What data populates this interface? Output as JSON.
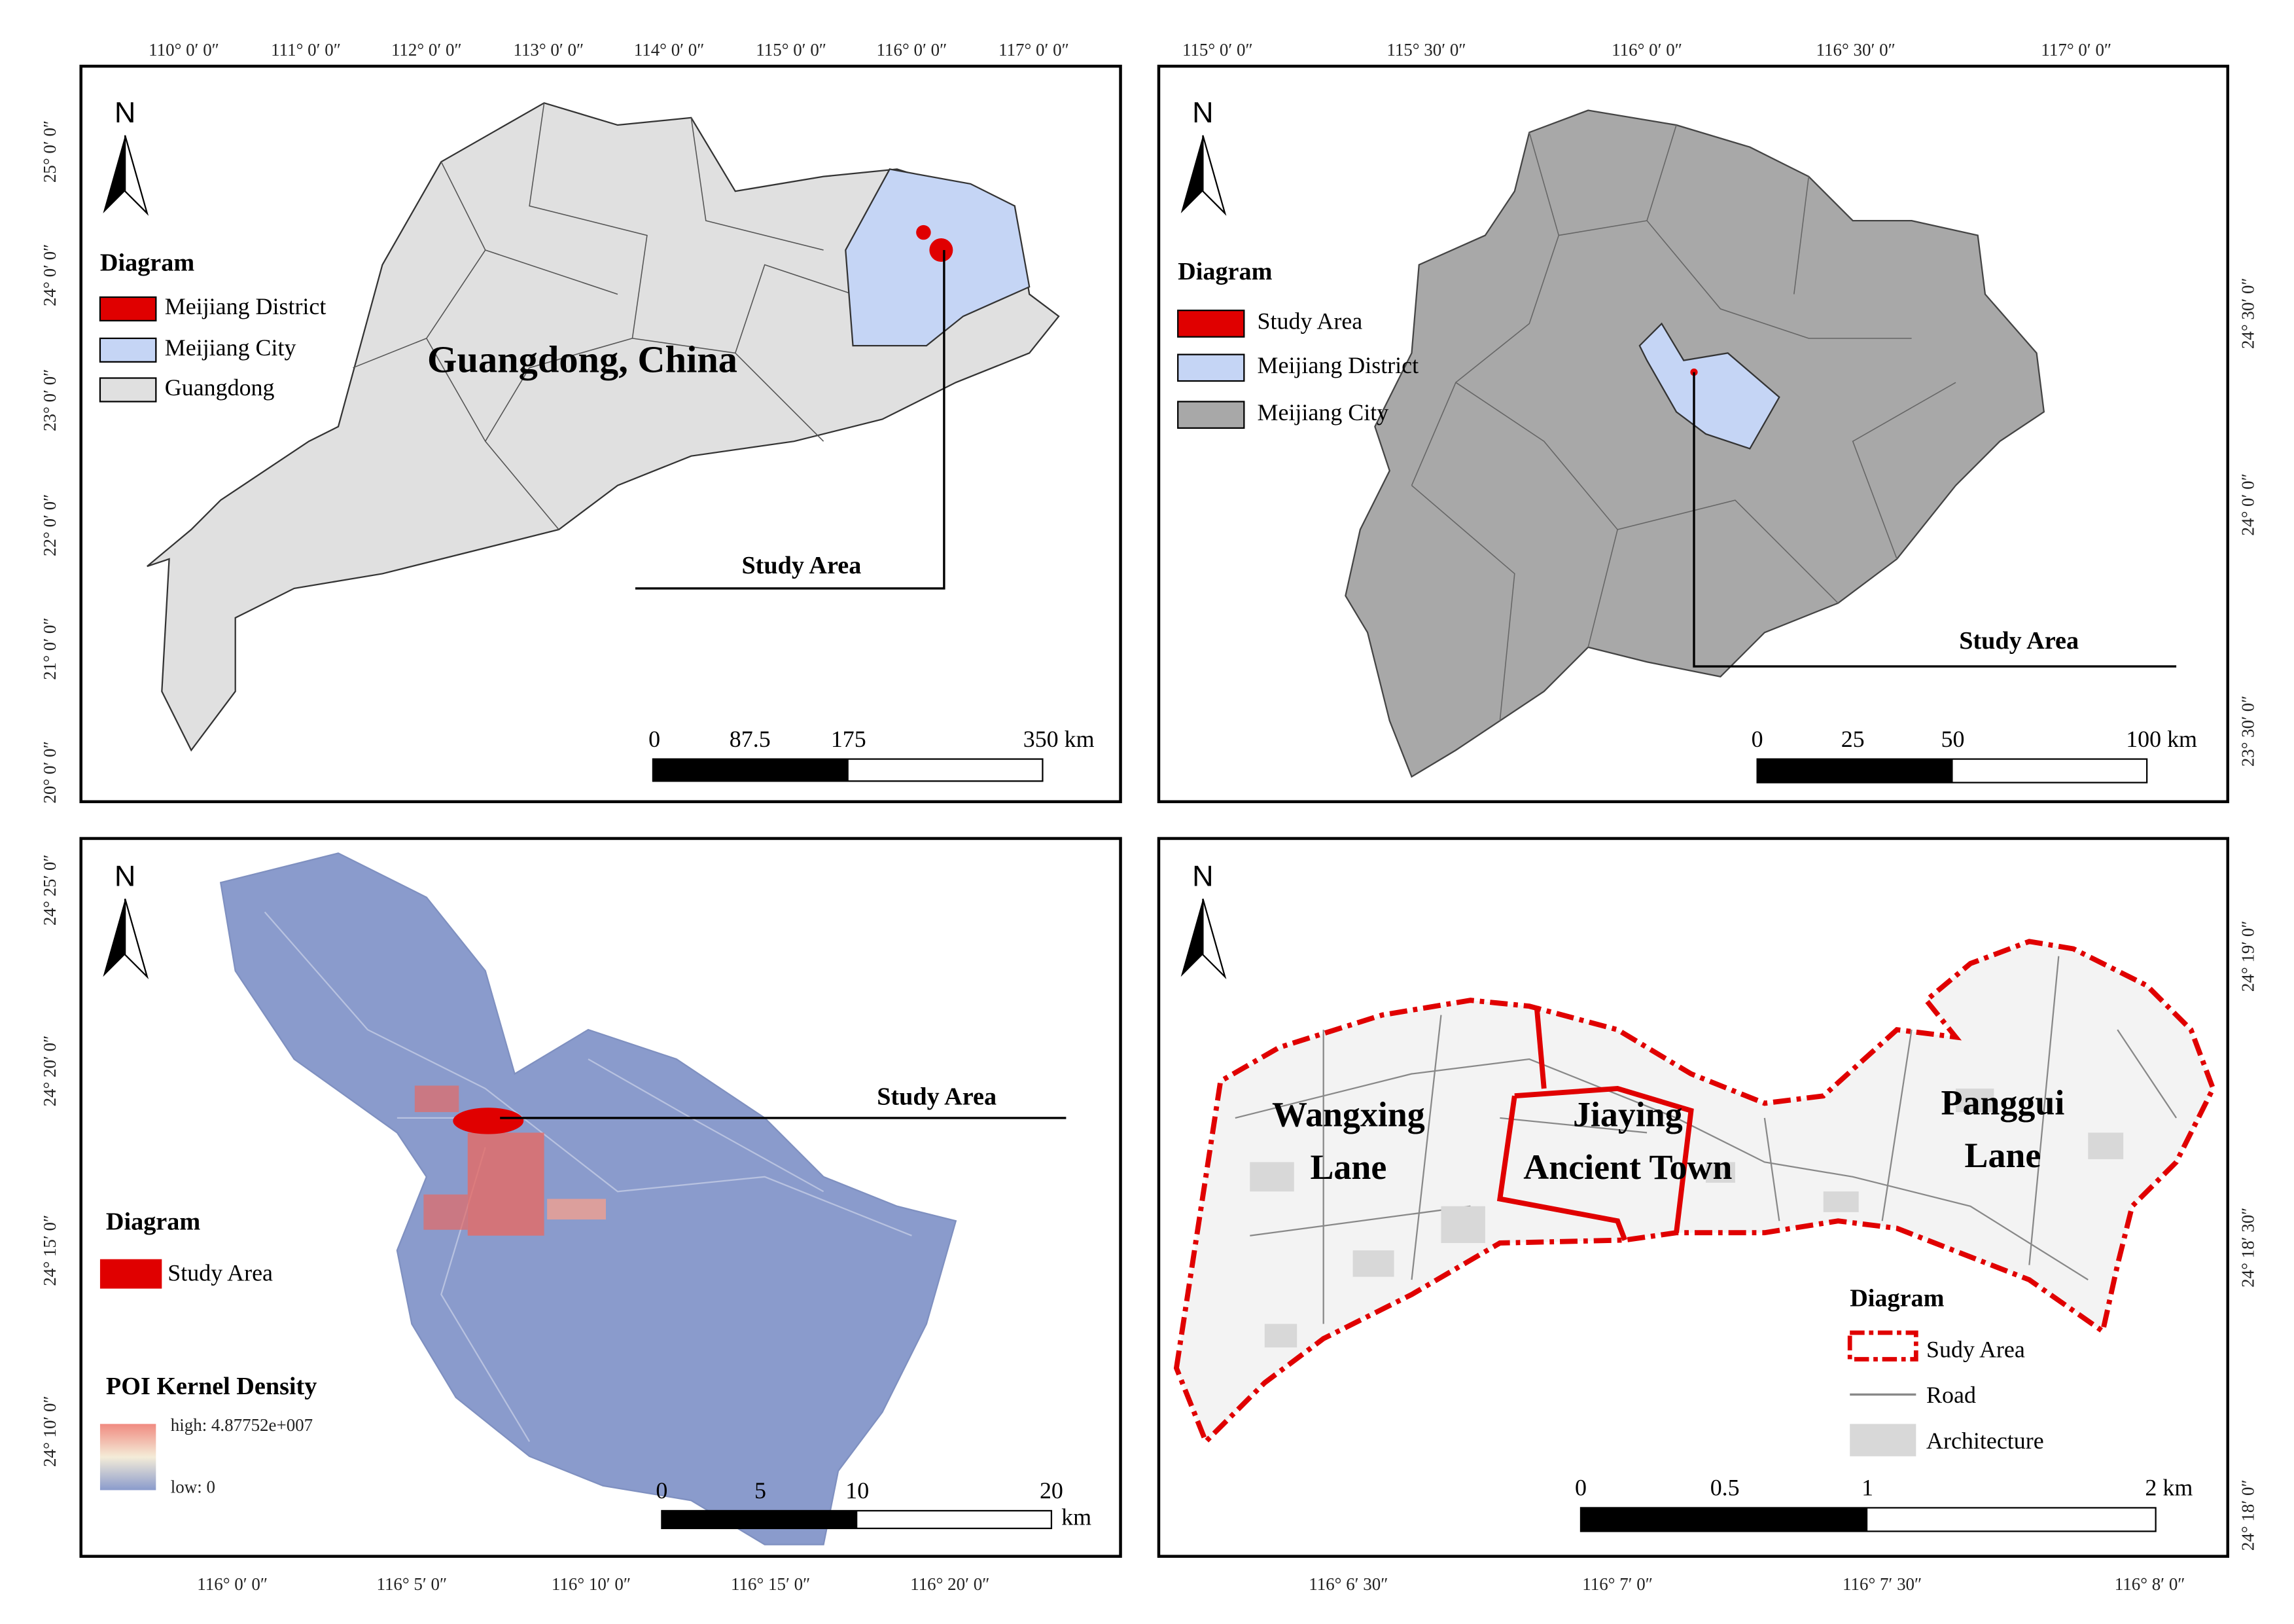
{
  "panel_1": {
    "top_axis": [
      "110° 0′ 0″",
      "111° 0′ 0″",
      "112° 0′ 0″",
      "113° 0′ 0″",
      "114° 0′ 0″",
      "115° 0′ 0″",
      "116° 0′ 0″",
      "117° 0′ 0″"
    ],
    "left_axis": [
      "25° 0′ 0″",
      "24° 0′ 0″",
      "23° 0′ 0″",
      "22° 0′ 0″",
      "21° 0′ 0″",
      "20° 0′ 0″"
    ],
    "north": "N",
    "legend_title": "Diagram",
    "legend": [
      "Meijiang District",
      "Meijiang City",
      "Guangdong"
    ],
    "region_label": "Guangdong, China",
    "callout": "Study Area",
    "scale": [
      "0",
      "87.5",
      "175",
      "350 km"
    ]
  },
  "panel_2": {
    "top_axis": [
      "115° 0′ 0″",
      "115° 30′ 0″",
      "116° 0′ 0″",
      "116° 30′ 0″",
      "117° 0′ 0″"
    ],
    "right_axis": [
      "24° 30′ 0″",
      "24° 0′ 0″",
      "23° 30′ 0″"
    ],
    "north": "N",
    "legend_title": "Diagram",
    "legend": [
      "Study Area",
      "Meijiang District",
      "Meijiang City"
    ],
    "callout": "Study Area",
    "scale": [
      "0",
      "25",
      "50",
      "100 km"
    ]
  },
  "panel_3": {
    "left_axis": [
      "24° 25′ 0″",
      "24° 20′ 0″",
      "24° 15′ 0″",
      "24° 10′ 0″"
    ],
    "bottom_axis": [
      "116° 0′ 0″",
      "116° 5′ 0″",
      "116° 10′ 0″",
      "116° 15′ 0″",
      "116° 20′ 0″"
    ],
    "north": "N",
    "legend_title": "Diagram",
    "legend": [
      "Study Area"
    ],
    "density_title": "POI Kernel Density",
    "density_high": "high: 4.87752e+007",
    "density_low": "low: 0",
    "callout": "Study Area",
    "scale": [
      "0",
      "5",
      "10",
      "20"
    ],
    "scale_unit": "km"
  },
  "panel_4": {
    "bottom_axis": [
      "116° 6′ 30″",
      "116° 7′ 0″",
      "116° 7′ 30″",
      "116° 8′ 0″"
    ],
    "right_axis": [
      "24° 19′ 0″",
      "24° 18′ 30″",
      "24° 18′ 0″"
    ],
    "north": "N",
    "labels": [
      [
        "Wangxing",
        "Lane"
      ],
      [
        "Jiaying",
        "Ancient Town"
      ],
      [
        "Panggui",
        "Lane"
      ]
    ],
    "legend_title": "Diagram",
    "legend": [
      "Sudy Area",
      "Road",
      "Architecture"
    ],
    "scale": [
      "0",
      "0.5",
      "1",
      "2 km"
    ]
  }
}
